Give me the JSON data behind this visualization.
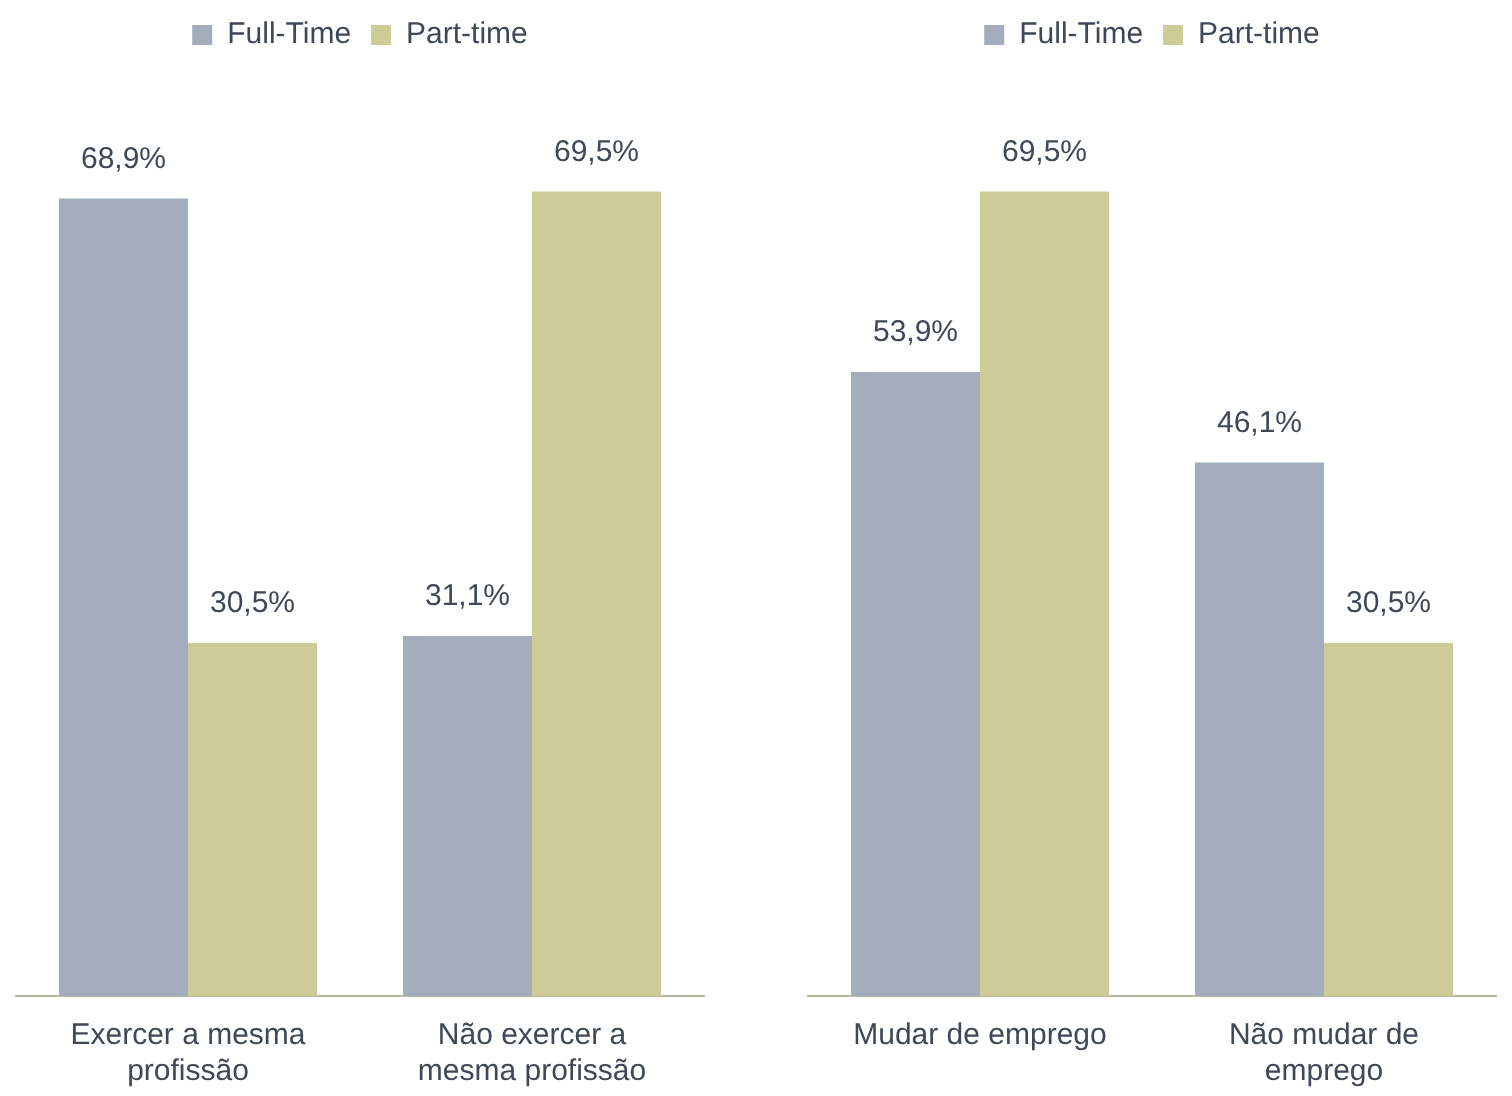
{
  "chart_data": [
    {
      "type": "bar",
      "categories": [
        "Exercer a mesma profissão",
        "Não exercer a mesma profissão"
      ],
      "legend": "top",
      "series": [
        {
          "name": "Full-Time",
          "color": "#a3acbb",
          "values": [
            68.9,
            31.1
          ],
          "value_labels": [
            "68,9%",
            "31,1%"
          ]
        },
        {
          "name": "Part-time",
          "color": "#cdcb98",
          "values": [
            30.5,
            69.5
          ],
          "value_labels": [
            "30,5%",
            "69,5%"
          ]
        }
      ]
    },
    {
      "type": "bar",
      "categories": [
        "Mudar de emprego",
        "Não mudar de emprego"
      ],
      "legend": "top",
      "series": [
        {
          "name": "Full-Time",
          "color": "#a3acbb",
          "values": [
            53.9,
            46.1
          ],
          "value_labels": [
            "53,9%",
            "46,1%"
          ]
        },
        {
          "name": "Part-time",
          "color": "#cdcb98",
          "values": [
            69.5,
            30.5
          ],
          "value_labels": [
            "69,5%",
            "30,5%"
          ]
        }
      ]
    }
  ]
}
